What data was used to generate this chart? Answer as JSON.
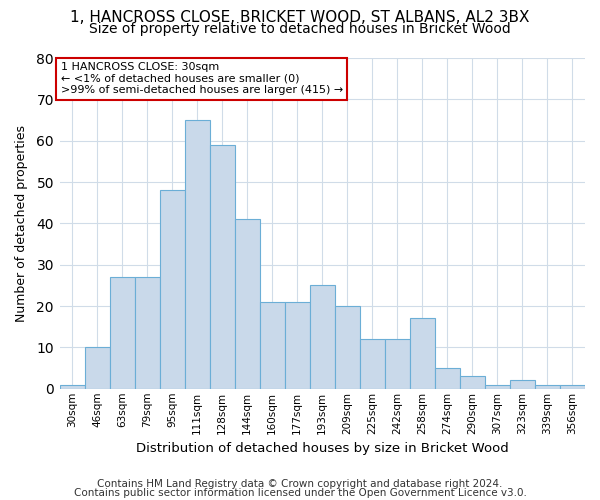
{
  "title1": "1, HANCROSS CLOSE, BRICKET WOOD, ST ALBANS, AL2 3BX",
  "title2": "Size of property relative to detached houses in Bricket Wood",
  "xlabel": "Distribution of detached houses by size in Bricket Wood",
  "ylabel": "Number of detached properties",
  "bar_labels": [
    "30sqm",
    "46sqm",
    "63sqm",
    "79sqm",
    "95sqm",
    "111sqm",
    "128sqm",
    "144sqm",
    "160sqm",
    "177sqm",
    "193sqm",
    "209sqm",
    "225sqm",
    "242sqm",
    "258sqm",
    "274sqm",
    "290sqm",
    "307sqm",
    "323sqm",
    "339sqm",
    "356sqm"
  ],
  "bar_values": [
    1,
    10,
    27,
    27,
    48,
    65,
    59,
    41,
    21,
    21,
    25,
    20,
    12,
    12,
    17,
    5,
    3,
    1,
    2,
    1,
    1
  ],
  "bar_color": "#c9d9ea",
  "bar_edge_color": "#6baed6",
  "ylim": [
    0,
    80
  ],
  "yticks": [
    0,
    10,
    20,
    30,
    40,
    50,
    60,
    70,
    80
  ],
  "annotation_text": "1 HANCROSS CLOSE: 30sqm\n← <1% of detached houses are smaller (0)\n>99% of semi-detached houses are larger (415) →",
  "annotation_box_color": "#ffffff",
  "annotation_box_edge": "#cc0000",
  "footer1": "Contains HM Land Registry data © Crown copyright and database right 2024.",
  "footer2": "Contains public sector information licensed under the Open Government Licence v3.0.",
  "bg_color": "#ffffff",
  "grid_color": "#d0dce8",
  "title_fontsize": 11,
  "subtitle_fontsize": 10,
  "footer_fontsize": 7.5
}
